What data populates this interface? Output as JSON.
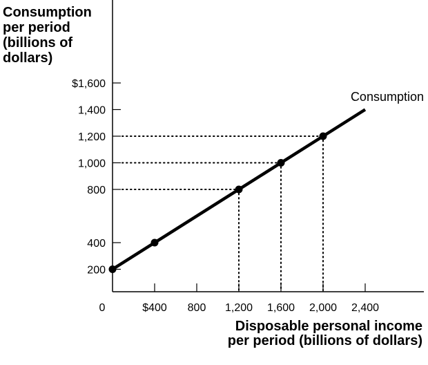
{
  "chart_data": {
    "type": "line",
    "ylabel_lines": [
      "Consumption",
      "per period",
      "(billions of",
      "dollars)"
    ],
    "xlabel_lines": [
      "Disposable personal income",
      "per period (billions of dollars)"
    ],
    "origin_label": "0",
    "x_ticks": [
      {
        "value": 400,
        "label": "$400"
      },
      {
        "value": 800,
        "label": "800"
      },
      {
        "value": 1200,
        "label": "1,200"
      },
      {
        "value": 1600,
        "label": "1,600"
      },
      {
        "value": 2000,
        "label": "2,000"
      },
      {
        "value": 2400,
        "label": "2,400"
      }
    ],
    "y_ticks": [
      {
        "value": 200,
        "label": "200"
      },
      {
        "value": 400,
        "label": "400"
      },
      {
        "value": 800,
        "label": "800"
      },
      {
        "value": 1000,
        "label": "1,000"
      },
      {
        "value": 1200,
        "label": "1,200"
      },
      {
        "value": 1400,
        "label": "1,400"
      },
      {
        "value": 1600,
        "label": "$1,600"
      }
    ],
    "xlim": [
      0,
      2900
    ],
    "ylim": [
      0,
      1700
    ],
    "series": [
      {
        "name": "Consumption",
        "line": [
          {
            "x": 0,
            "y": 200
          },
          {
            "x": 2400,
            "y": 1400
          }
        ],
        "points": [
          {
            "x": 0,
            "y": 200
          },
          {
            "x": 400,
            "y": 400
          },
          {
            "x": 1200,
            "y": 800
          },
          {
            "x": 1600,
            "y": 1000
          },
          {
            "x": 2000,
            "y": 1200
          }
        ]
      }
    ],
    "guide_points": [
      {
        "x": 1200,
        "y": 800
      },
      {
        "x": 1600,
        "y": 1000
      },
      {
        "x": 2000,
        "y": 1200
      }
    ],
    "grid": false,
    "legend": "none"
  }
}
